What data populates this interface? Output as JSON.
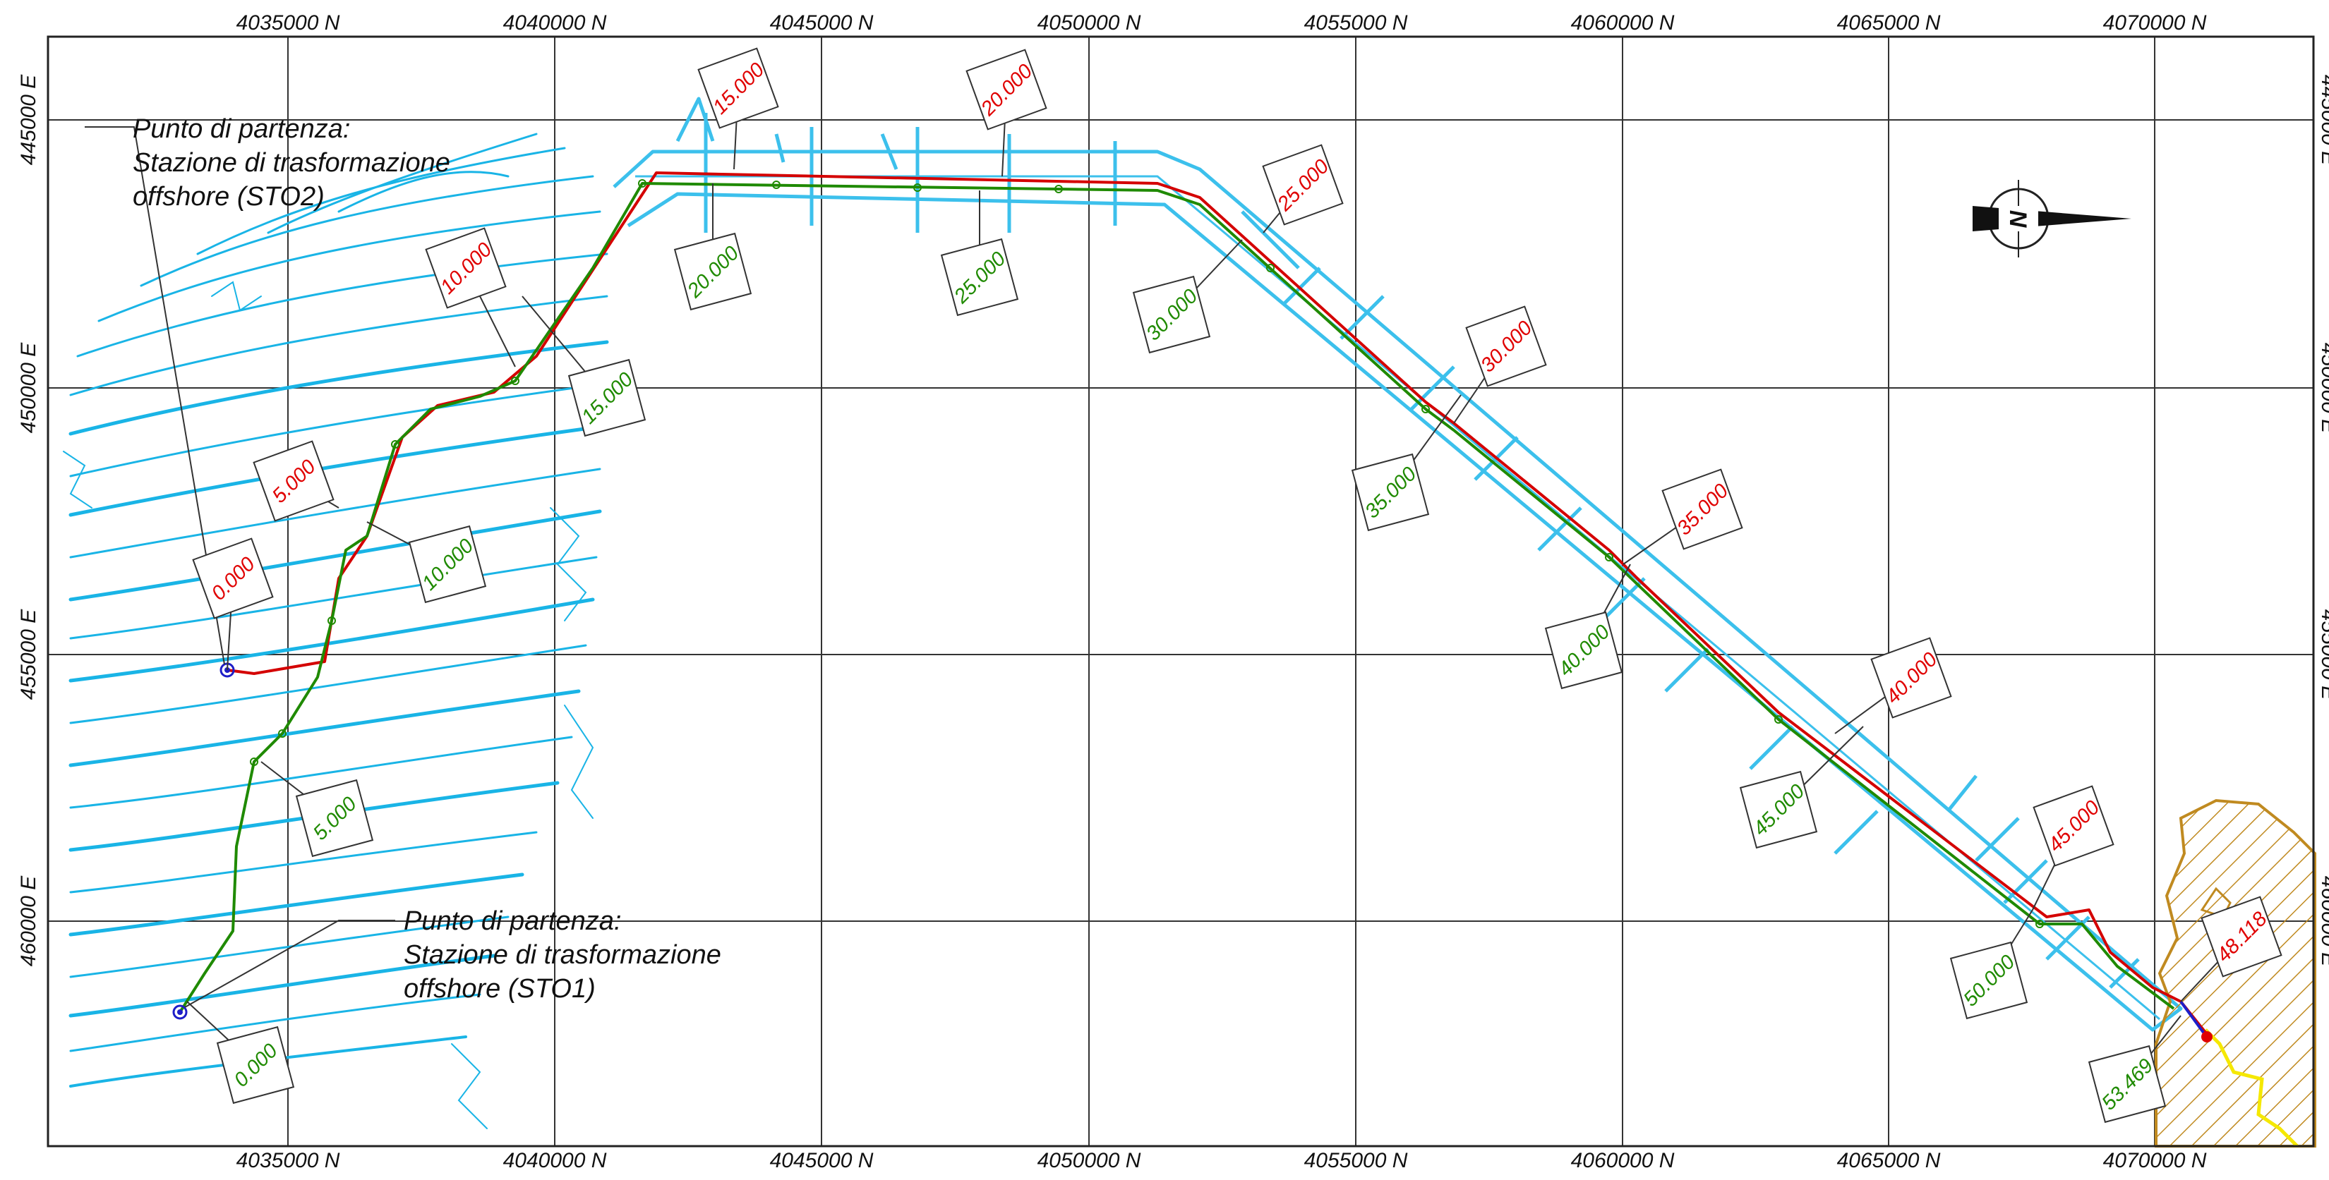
{
  "map": {
    "frame": {
      "x_ticks": [
        "4035000 N",
        "4040000 N",
        "4045000 N",
        "4050000 N",
        "4055000 N",
        "4060000 N",
        "4065000 N",
        "4070000 N"
      ],
      "y_ticks": [
        "445000 E",
        "450000 E",
        "455000 E",
        "460000 E"
      ]
    },
    "colors": {
      "contours": "#19b4e6",
      "corridor": "#3cc0ec",
      "red_route": "#d40000",
      "green_route": "#1f8a00",
      "landfall": "#c08a20",
      "shoreline": "#f5e800",
      "grid": "#333333",
      "label_red": "#e00000",
      "label_green": "#1f8a00"
    },
    "annotations": {
      "sto2": [
        "Punto di partenza:",
        "Stazione di trasformazione",
        "offshore (STO2)"
      ],
      "sto1": [
        "Punto di partenza:",
        "Stazione di trasformazione",
        "offshore (STO1)"
      ]
    },
    "north_arrow": {
      "letter": "N",
      "icon": "north-arrow-icon"
    },
    "red_labels": [
      "0.000",
      "5.000",
      "10.000",
      "15.000",
      "20.000",
      "25.000",
      "30.000",
      "35.000",
      "40.000",
      "45.000",
      "48.118"
    ],
    "green_labels": [
      "0.000",
      "5.000",
      "10.000",
      "15.000",
      "20.000",
      "25.000",
      "30.000",
      "35.000",
      "40.000",
      "45.000",
      "50.000",
      "53.469"
    ]
  }
}
